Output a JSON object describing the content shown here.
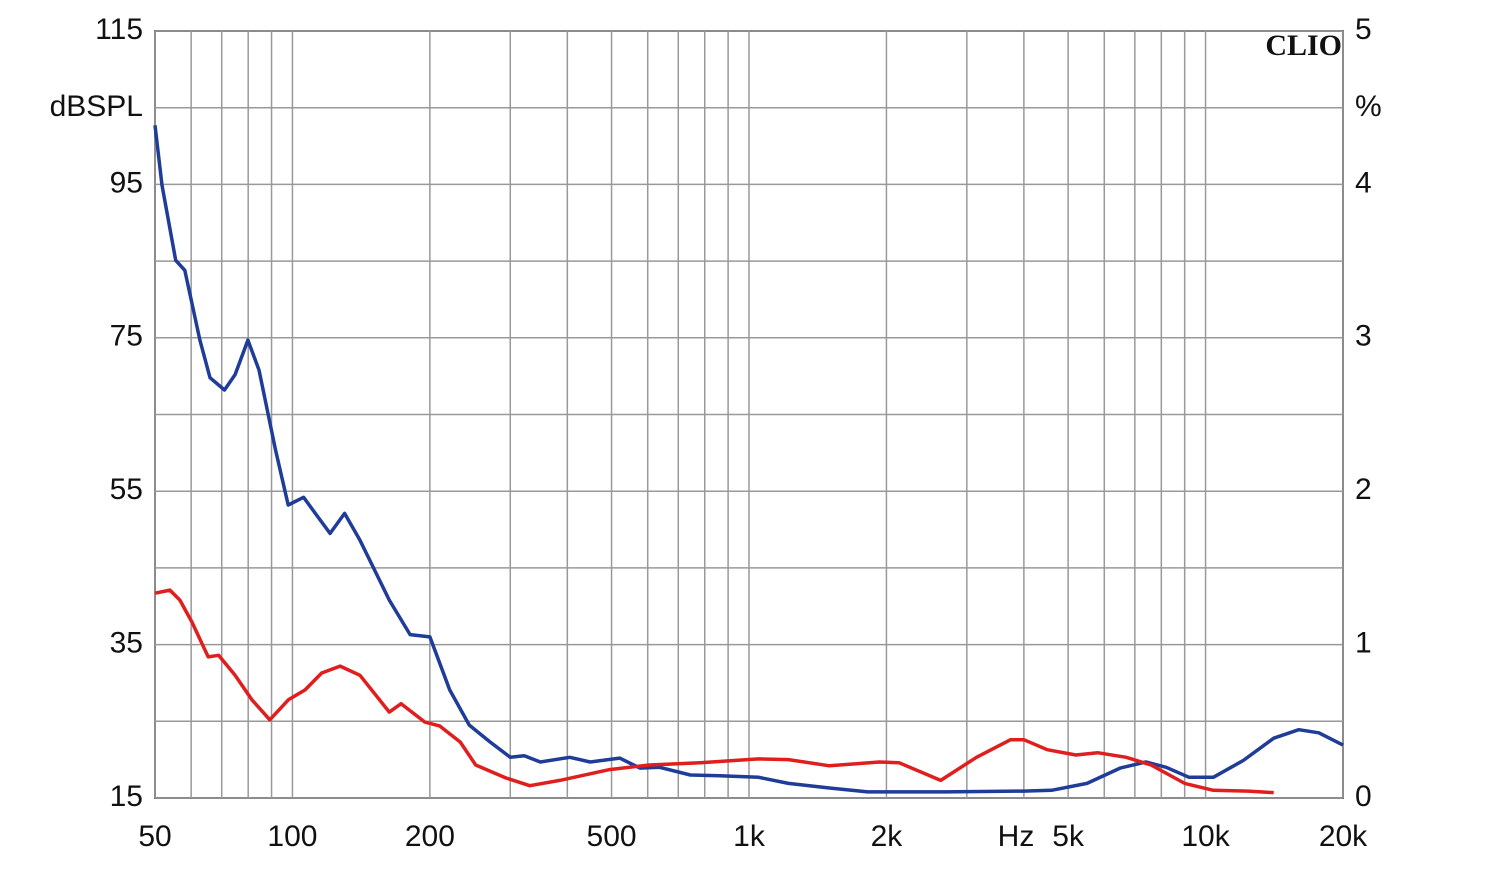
{
  "chart_data": {
    "type": "line",
    "watermark": "CLIO",
    "y_label": "dBSPL",
    "y2_label": "%",
    "x_label": "Hz",
    "log_x": true,
    "grid": true,
    "xlim": [
      50,
      20000
    ],
    "xticks": [
      50,
      100,
      200,
      500,
      {
        "value": 1000,
        "label": "1k"
      },
      {
        "value": 2000,
        "label": "2k"
      },
      {
        "value": 5000,
        "label": "5k"
      },
      {
        "value": 10000,
        "label": "10k"
      },
      {
        "value": 20000,
        "label": "20k"
      }
    ],
    "xgrid_minor": [
      60,
      70,
      80,
      90,
      300,
      400,
      600,
      700,
      800,
      900,
      3000,
      4000,
      6000,
      7000,
      8000,
      9000
    ],
    "ylim": [
      15,
      115
    ],
    "yticks": [
      15,
      35,
      55,
      75,
      95,
      115
    ],
    "ygrid_minor": [
      25,
      45,
      65,
      85,
      105
    ],
    "y2lim": [
      0,
      5
    ],
    "y2ticks": [
      0,
      1,
      2,
      3,
      4,
      5
    ],
    "series": [
      {
        "color": "#1f3c98",
        "x": [
          50,
          51.8,
          55.5,
          58.1,
          62.7,
          66,
          71,
          74.9,
          79.9,
          84.5,
          91.8,
          97.9,
          105.8,
          112.9,
          120.9,
          130.1,
          140.6,
          163,
          181,
          200,
          221,
          244,
          271,
          300,
          322,
          349,
          405,
          449,
          521,
          577,
          637,
          744,
          862,
          1050,
          1220,
          1500,
          1820,
          2690,
          3990,
          4600,
          5500,
          6500,
          7400,
          8200,
          9200,
          10400,
          12100,
          14100,
          16000,
          17700,
          20000
        ],
        "values": [
          102.7,
          94.9,
          85.1,
          83.8,
          74.7,
          69.8,
          68.2,
          70.2,
          74.7,
          70.8,
          60.4,
          53.2,
          54.2,
          51.9,
          49.5,
          52.1,
          48.6,
          40.8,
          36.3,
          36,
          29.1,
          24.5,
          22.3,
          20.3,
          20.5,
          19.7,
          20.3,
          19.7,
          20.2,
          18.9,
          19,
          18,
          17.9,
          17.7,
          16.9,
          16.3,
          15.8,
          15.8,
          15.9,
          16,
          16.9,
          18.9,
          19.7,
          19,
          17.7,
          17.7,
          19.9,
          22.8,
          23.9,
          23.5,
          21.9
        ]
      },
      {
        "color": "#e01e1e",
        "x": [
          50,
          53.9,
          56.7,
          60.3,
          65.4,
          68.9,
          74.9,
          81.5,
          89.2,
          98,
          106.6,
          115.9,
          127.2,
          140.6,
          163,
          173,
          195,
          210,
          233,
          252,
          294,
          331,
          385,
          495,
          605,
          782,
          1050,
          1220,
          1500,
          1930,
          2130,
          2630,
          3150,
          3740,
          4000,
          4500,
          5200,
          5800,
          6700,
          7600,
          9000,
          10400,
          12400,
          14100
        ],
        "values": [
          41.7,
          42.1,
          40.8,
          37.9,
          33.4,
          33.6,
          31,
          27.8,
          25.2,
          27.8,
          29.1,
          31.3,
          32.2,
          31,
          26.2,
          27.3,
          24.9,
          24.4,
          22.3,
          19.3,
          17.6,
          16.6,
          17.3,
          18.7,
          19.3,
          19.6,
          20.1,
          20,
          19.2,
          19.7,
          19.6,
          17.3,
          20.3,
          22.6,
          22.6,
          21.3,
          20.6,
          20.9,
          20.3,
          19.3,
          16.9,
          16,
          15.9,
          15.7
        ]
      }
    ]
  }
}
